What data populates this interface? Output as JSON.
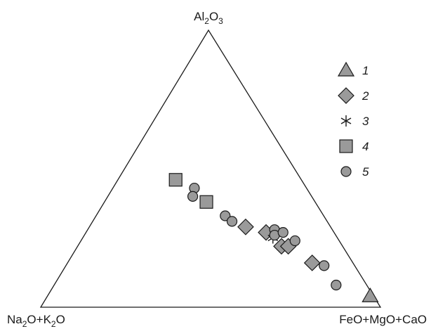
{
  "chart_data": {
    "type": "scatter",
    "subtype": "ternary",
    "title": "",
    "apices": {
      "top": {
        "base": "Al",
        "sub1": "2",
        "mid": "O",
        "sub2": "3",
        "text": "Al2O3"
      },
      "left": {
        "part1": "Na",
        "sub1": "2",
        "part2": "O+K",
        "sub2": "2",
        "part3": "O",
        "text": "Na2O+K2O"
      },
      "right": {
        "text": "FeO+MgO+CaO"
      }
    },
    "legend_position": "top-right",
    "colors": {
      "marker_fill": "#9a9a9a",
      "stroke": "#1a1a1a"
    },
    "series": [
      {
        "name": "1",
        "marker": "triangle",
        "points": [
          {
            "top": 0.04,
            "right": 0.95
          }
        ]
      },
      {
        "name": "2",
        "marker": "diamond",
        "points": [
          {
            "top": 0.29,
            "right": 0.46
          },
          {
            "top": 0.27,
            "right": 0.53
          },
          {
            "top": 0.22,
            "right": 0.6
          },
          {
            "top": 0.22,
            "right": 0.62
          },
          {
            "top": 0.16,
            "right": 0.72
          }
        ]
      },
      {
        "name": "3",
        "marker": "asterisk",
        "points": [
          {
            "top": 0.25,
            "right": 0.56
          }
        ]
      },
      {
        "name": "4",
        "marker": "square",
        "points": [
          {
            "top": 0.46,
            "right": 0.17
          },
          {
            "top": 0.38,
            "right": 0.3
          }
        ]
      },
      {
        "name": "5",
        "marker": "circle",
        "points": [
          {
            "top": 0.43,
            "right": 0.24
          },
          {
            "top": 0.4,
            "right": 0.25
          },
          {
            "top": 0.33,
            "right": 0.38
          },
          {
            "top": 0.31,
            "right": 0.41
          },
          {
            "top": 0.28,
            "right": 0.55
          },
          {
            "top": 0.26,
            "right": 0.56
          },
          {
            "top": 0.27,
            "right": 0.58
          },
          {
            "top": 0.24,
            "right": 0.63
          },
          {
            "top": 0.15,
            "right": 0.76
          },
          {
            "top": 0.08,
            "right": 0.83
          }
        ]
      }
    ]
  }
}
